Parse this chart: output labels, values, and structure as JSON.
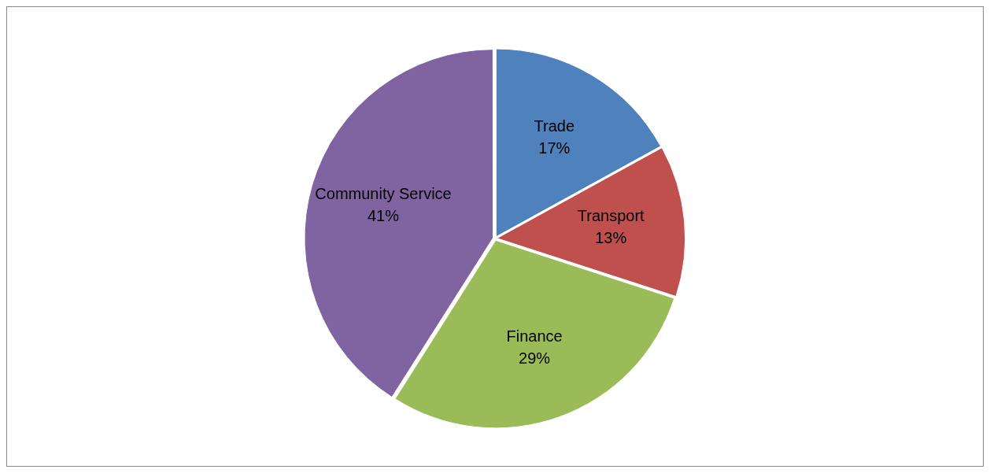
{
  "chart_data": {
    "type": "pie",
    "categories": [
      "Trade",
      "Transport",
      "Finance",
      "Community Service"
    ],
    "values": [
      17,
      13,
      29,
      41
    ],
    "colors": [
      "#4f81bd",
      "#c0504d",
      "#9bbb59",
      "#8064a2"
    ],
    "value_labels": [
      "17%",
      "13%",
      "29%",
      "41%"
    ],
    "legend": false
  }
}
